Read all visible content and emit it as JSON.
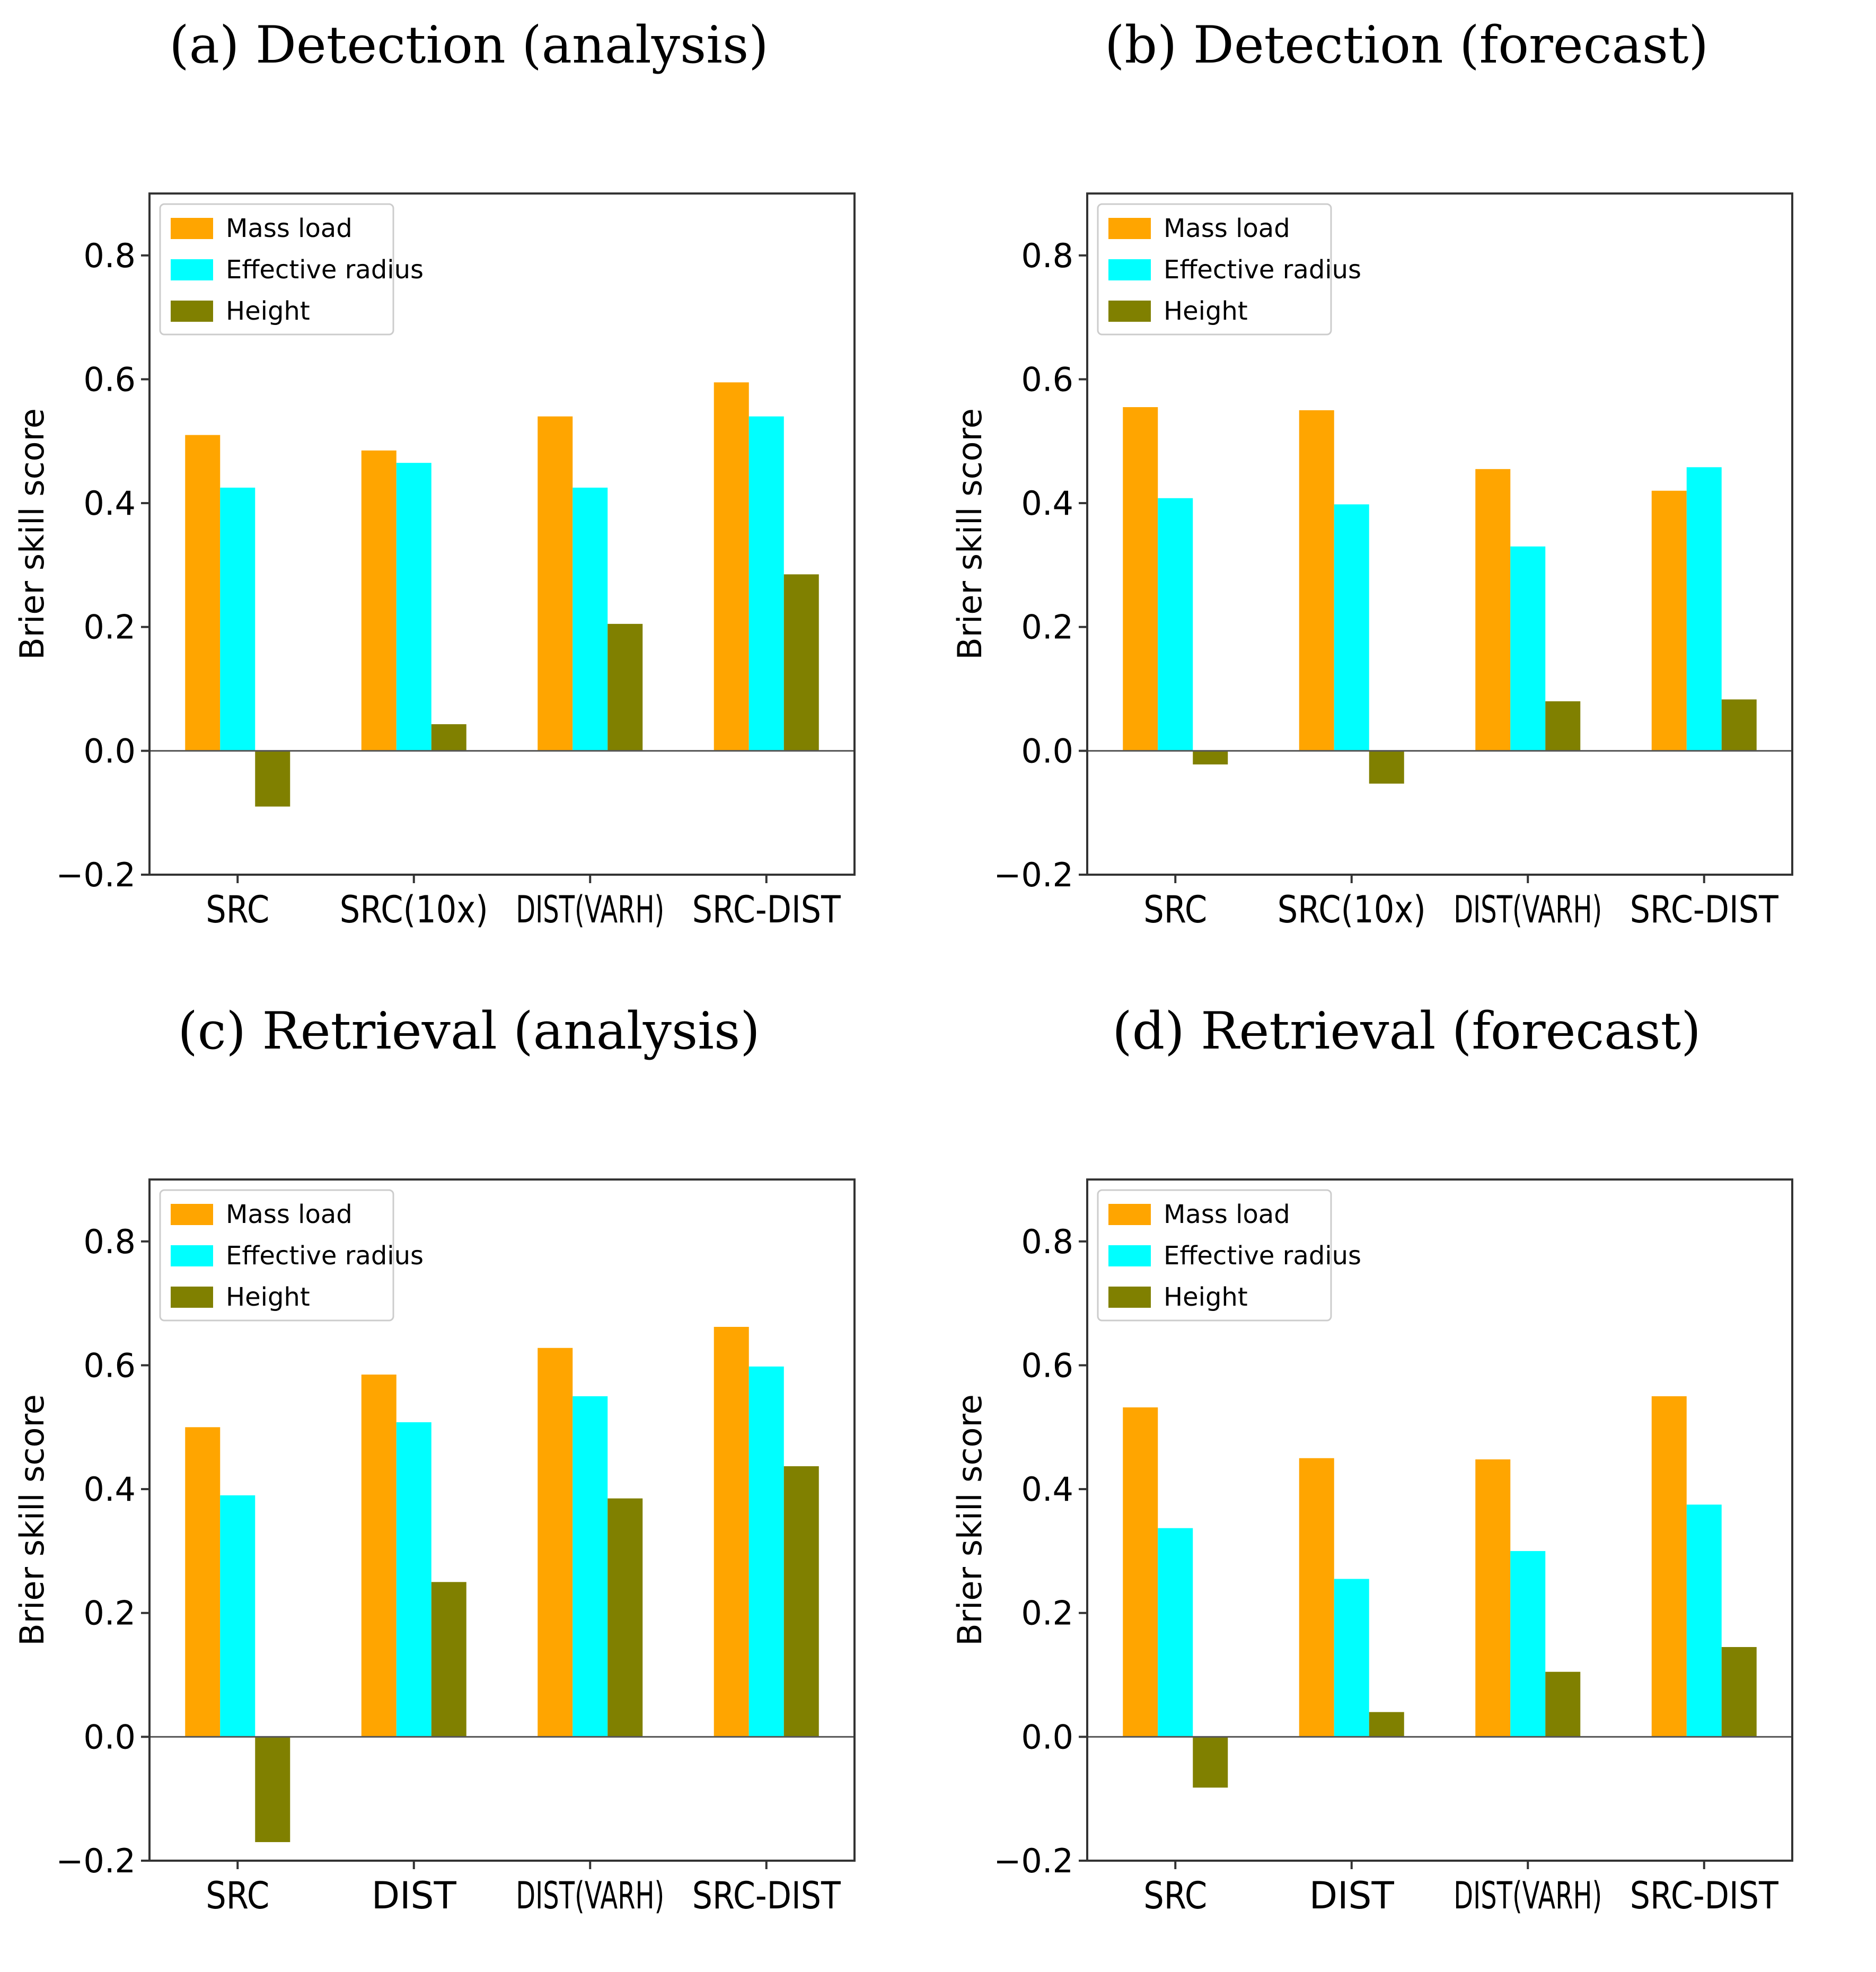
{
  "colors": {
    "Mass load": "#ffa500",
    "Effective radius": "#00ffff",
    "Height": "#808000"
  },
  "chart_data": [
    {
      "type": "bar",
      "title": "(a) Detection (analysis)",
      "ylabel": "Brier skill score",
      "xlabel": "",
      "ylim": [
        -0.2,
        0.9
      ],
      "yticks": [
        "0.8",
        "0.6",
        "0.4",
        "0.2",
        "0.0",
        "−0.2"
      ],
      "categories": [
        "SRC",
        "SRC(10x)",
        "DIST(VARH)",
        "SRC-DIST"
      ],
      "legend": "top-left",
      "series": [
        {
          "name": "Mass load",
          "values": [
            0.51,
            0.485,
            0.54,
            0.595
          ]
        },
        {
          "name": "Effective radius",
          "values": [
            0.425,
            0.465,
            0.425,
            0.54
          ]
        },
        {
          "name": "Height",
          "values": [
            -0.09,
            0.043,
            0.205,
            0.285
          ]
        }
      ]
    },
    {
      "type": "bar",
      "title": "(b) Detection (forecast)",
      "ylabel": "Brier skill score",
      "xlabel": "",
      "ylim": [
        -0.2,
        0.9
      ],
      "yticks": [
        "0.8",
        "0.6",
        "0.4",
        "0.2",
        "0.0",
        "−0.2"
      ],
      "categories": [
        "SRC",
        "SRC(10x)",
        "DIST(VARH)",
        "SRC-DIST"
      ],
      "legend": "top-left",
      "series": [
        {
          "name": "Mass load",
          "values": [
            0.555,
            0.55,
            0.455,
            0.42
          ]
        },
        {
          "name": "Effective radius",
          "values": [
            0.408,
            0.398,
            0.33,
            0.458
          ]
        },
        {
          "name": "Height",
          "values": [
            -0.022,
            -0.053,
            0.08,
            0.083
          ]
        }
      ]
    },
    {
      "type": "bar",
      "title": "(c) Retrieval (analysis)",
      "ylabel": "Brier skill score",
      "xlabel": "",
      "ylim": [
        -0.2,
        0.9
      ],
      "yticks": [
        "0.8",
        "0.6",
        "0.4",
        "0.2",
        "0.0",
        "−0.2"
      ],
      "categories": [
        "SRC",
        "DIST",
        "DIST(VARH)",
        "SRC-DIST"
      ],
      "legend": "top-left",
      "series": [
        {
          "name": "Mass load",
          "values": [
            0.5,
            0.585,
            0.628,
            0.662
          ]
        },
        {
          "name": "Effective radius",
          "values": [
            0.39,
            0.508,
            0.55,
            0.598
          ]
        },
        {
          "name": "Height",
          "values": [
            -0.17,
            0.25,
            0.385,
            0.437
          ]
        }
      ]
    },
    {
      "type": "bar",
      "title": "(d) Retrieval (forecast)",
      "ylabel": "Brier skill score",
      "xlabel": "",
      "ylim": [
        -0.2,
        0.9
      ],
      "yticks": [
        "0.8",
        "0.6",
        "0.4",
        "0.2",
        "0.0",
        "−0.2"
      ],
      "categories": [
        "SRC",
        "DIST",
        "DIST(VARH)",
        "SRC-DIST"
      ],
      "legend": "top-left",
      "series": [
        {
          "name": "Mass load",
          "values": [
            0.532,
            0.45,
            0.448,
            0.55
          ]
        },
        {
          "name": "Effective radius",
          "values": [
            0.337,
            0.255,
            0.3,
            0.375
          ]
        },
        {
          "name": "Height",
          "values": [
            -0.082,
            0.04,
            0.105,
            0.145
          ]
        }
      ]
    }
  ]
}
